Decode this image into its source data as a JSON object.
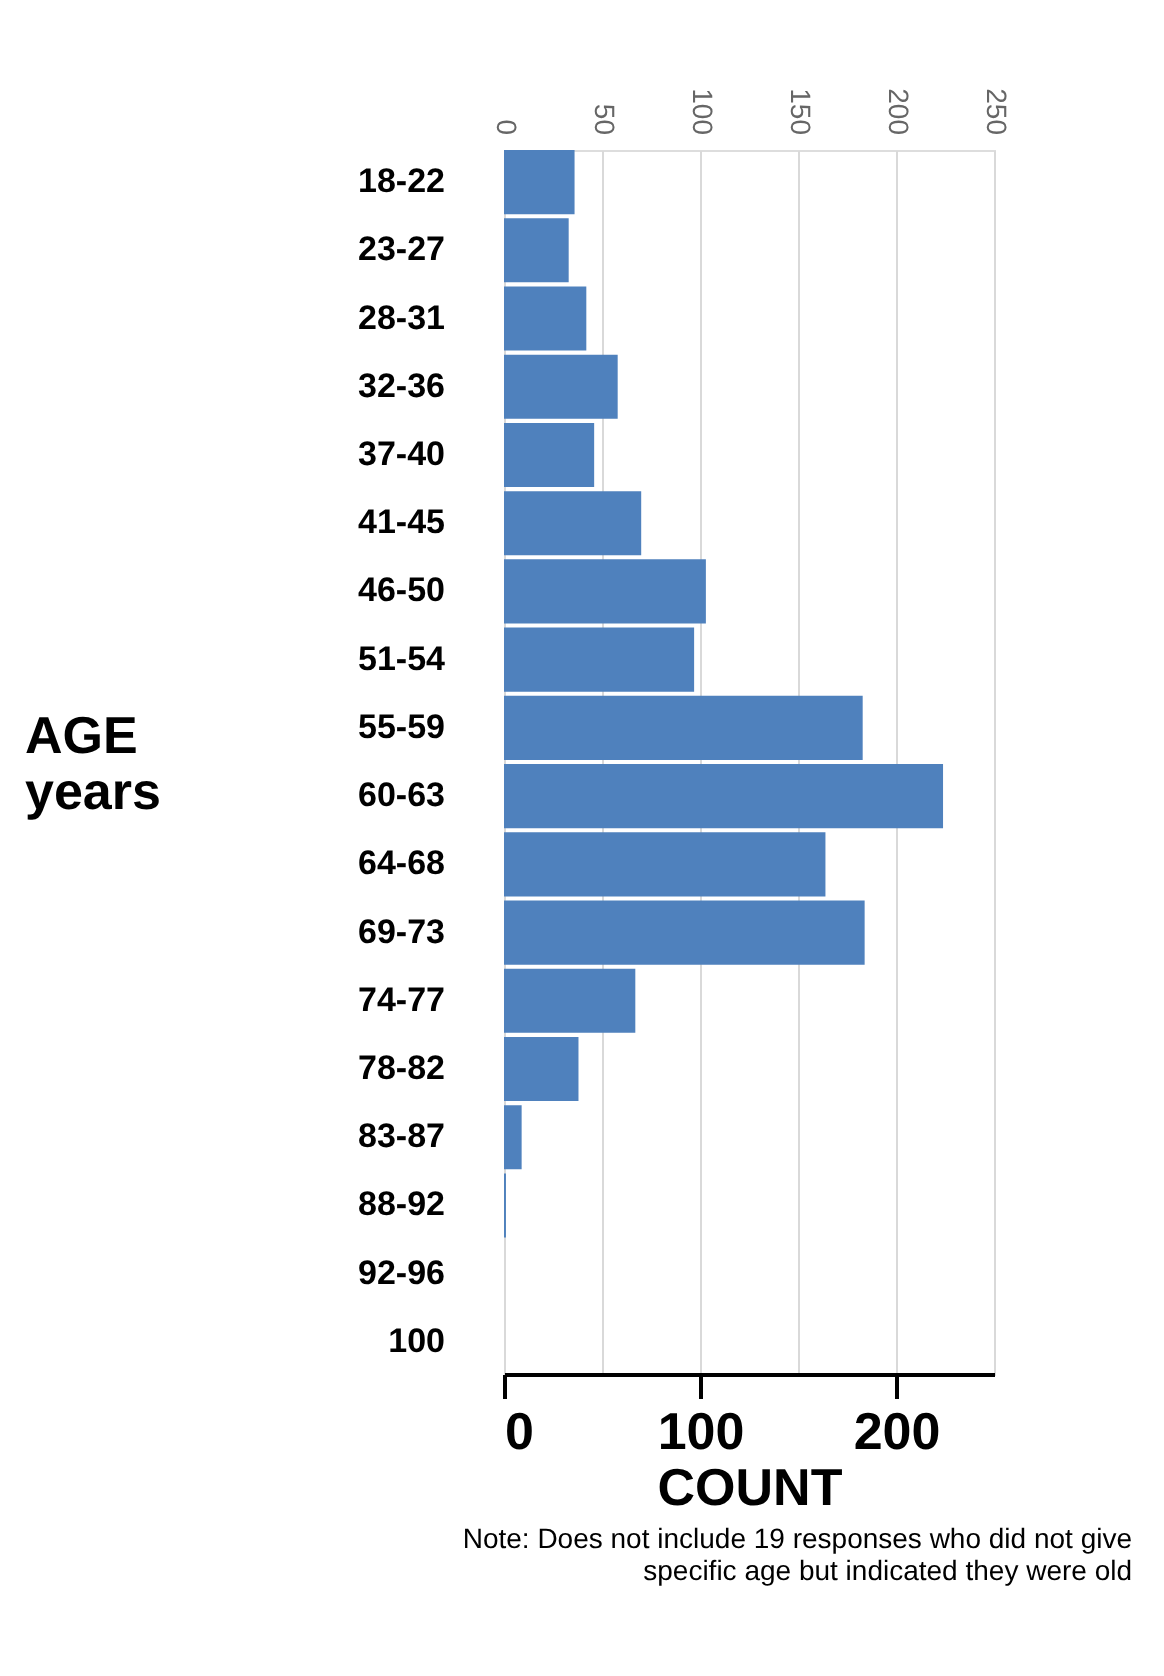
{
  "chart_data": {
    "type": "bar",
    "orientation": "horizontal",
    "xlabel": "COUNT",
    "ylabel": "AGE years",
    "categories": [
      "18-22",
      "23-27",
      "28-31",
      "32-36",
      "37-40",
      "41-45",
      "46-50",
      "51-54",
      "55-59",
      "60-63",
      "64-68",
      "69-73",
      "74-77",
      "78-82",
      "83-87",
      "88-92",
      "92-96",
      "100"
    ],
    "values": [
      36,
      33,
      42,
      58,
      46,
      70,
      103,
      97,
      183,
      224,
      164,
      184,
      67,
      38,
      9,
      1,
      0,
      0
    ],
    "color": "#4f81bd",
    "xlim": [
      0,
      250
    ],
    "xticks": [
      0,
      100,
      200
    ],
    "x2lim": [
      0,
      250
    ],
    "x2ticks": [
      0,
      50,
      100,
      150,
      200,
      250
    ],
    "grid": "x",
    "annotations": [
      "Note: Does not include 19 responses who did not give specific age but indicated they were old"
    ]
  }
}
